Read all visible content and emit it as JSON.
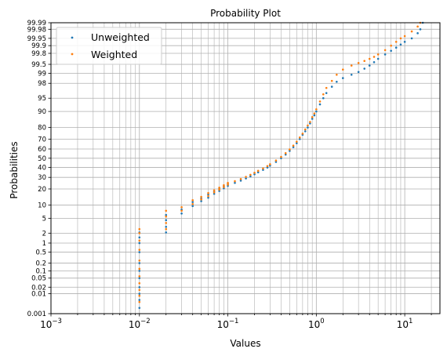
{
  "chart_data": {
    "type": "scatter",
    "title": "Probability Plot",
    "xlabel": "Values",
    "ylabel": "Probabilities",
    "x_scale": "log",
    "y_scale": "probability",
    "xlim": [
      0.001,
      25
    ],
    "ylim": [
      0.001,
      99.99
    ],
    "grid": true,
    "legend_position": "top-left",
    "x_ticks": [
      {
        "value": 0.001,
        "label": "10",
        "exp": "−3"
      },
      {
        "value": 0.01,
        "label": "10",
        "exp": "−2"
      },
      {
        "value": 0.1,
        "label": "10",
        "exp": "−1"
      },
      {
        "value": 1,
        "label": "10",
        "exp": "0"
      },
      {
        "value": 10,
        "label": "10",
        "exp": "1"
      }
    ],
    "y_ticks": [
      {
        "value": 0.001,
        "label": "0.001"
      },
      {
        "value": 0.01,
        "label": "0.01"
      },
      {
        "value": 0.02,
        "label": "0.02"
      },
      {
        "value": 0.05,
        "label": "0.05"
      },
      {
        "value": 0.1,
        "label": "0.1"
      },
      {
        "value": 0.2,
        "label": "0.2"
      },
      {
        "value": 0.5,
        "label": "0.5"
      },
      {
        "value": 1,
        "label": "1"
      },
      {
        "value": 2,
        "label": "2"
      },
      {
        "value": 5,
        "label": "5"
      },
      {
        "value": 10,
        "label": "10"
      },
      {
        "value": 20,
        "label": "20"
      },
      {
        "value": 30,
        "label": "30"
      },
      {
        "value": 40,
        "label": "40"
      },
      {
        "value": 50,
        "label": "50"
      },
      {
        "value": 60,
        "label": "60"
      },
      {
        "value": 70,
        "label": "70"
      },
      {
        "value": 80,
        "label": "80"
      },
      {
        "value": 90,
        "label": "90"
      },
      {
        "value": 95,
        "label": "95"
      },
      {
        "value": 98,
        "label": "98"
      },
      {
        "value": 99,
        "label": "99"
      },
      {
        "value": 99.5,
        "label": "99.5"
      },
      {
        "value": 99.8,
        "label": "99.8"
      },
      {
        "value": 99.9,
        "label": "99.9"
      },
      {
        "value": 99.95,
        "label": "99.95"
      },
      {
        "value": 99.98,
        "label": "99.98"
      },
      {
        "value": 99.99,
        "label": "99.99"
      }
    ],
    "series": [
      {
        "name": "Unweighted",
        "color": "#1f77b4",
        "points": [
          [
            0.01,
            0.002
          ],
          [
            0.01,
            0.005
          ],
          [
            0.01,
            0.01
          ],
          [
            0.01,
            0.02
          ],
          [
            0.01,
            0.05
          ],
          [
            0.01,
            0.1
          ],
          [
            0.01,
            0.2
          ],
          [
            0.01,
            0.5
          ],
          [
            0.01,
            1
          ],
          [
            0.01,
            1.5
          ],
          [
            0.01,
            2.1
          ],
          [
            0.02,
            2.1
          ],
          [
            0.02,
            3
          ],
          [
            0.02,
            4.5
          ],
          [
            0.02,
            6
          ],
          [
            0.03,
            6.5
          ],
          [
            0.03,
            8
          ],
          [
            0.04,
            9.5
          ],
          [
            0.04,
            11.5
          ],
          [
            0.05,
            12
          ],
          [
            0.05,
            13.5
          ],
          [
            0.06,
            14
          ],
          [
            0.06,
            16
          ],
          [
            0.07,
            16.5
          ],
          [
            0.07,
            18
          ],
          [
            0.08,
            18.5
          ],
          [
            0.08,
            20
          ],
          [
            0.09,
            20.5
          ],
          [
            0.09,
            22
          ],
          [
            0.1,
            22.5
          ],
          [
            0.1,
            24
          ],
          [
            0.12,
            25
          ],
          [
            0.14,
            27
          ],
          [
            0.16,
            29
          ],
          [
            0.18,
            31
          ],
          [
            0.2,
            33
          ],
          [
            0.22,
            35
          ],
          [
            0.25,
            37.5
          ],
          [
            0.28,
            40
          ],
          [
            0.3,
            42
          ],
          [
            0.35,
            46
          ],
          [
            0.4,
            50
          ],
          [
            0.45,
            54
          ],
          [
            0.5,
            58
          ],
          [
            0.55,
            62
          ],
          [
            0.6,
            66
          ],
          [
            0.65,
            70
          ],
          [
            0.7,
            74
          ],
          [
            0.75,
            77
          ],
          [
            0.8,
            80
          ],
          [
            0.85,
            83
          ],
          [
            0.9,
            86
          ],
          [
            0.95,
            88
          ],
          [
            1.0,
            90
          ],
          [
            1.1,
            93
          ],
          [
            1.2,
            95
          ],
          [
            1.3,
            96.3
          ],
          [
            1.5,
            97.5
          ],
          [
            1.7,
            98.2
          ],
          [
            2.0,
            98.6
          ],
          [
            2.5,
            98.9
          ],
          [
            3.0,
            99.1
          ],
          [
            3.5,
            99.3
          ],
          [
            4.0,
            99.45
          ],
          [
            4.5,
            99.58
          ],
          [
            5.0,
            99.68
          ],
          [
            6.0,
            99.78
          ],
          [
            7.0,
            99.84
          ],
          [
            8.0,
            99.88
          ],
          [
            9.0,
            99.91
          ],
          [
            10,
            99.93
          ],
          [
            12,
            99.95
          ],
          [
            14,
            99.97
          ],
          [
            15,
            99.98
          ],
          [
            16,
            99.99
          ]
        ]
      },
      {
        "name": "Weighted",
        "color": "#ff7f0e",
        "points": [
          [
            0.01,
            0.004
          ],
          [
            0.01,
            0.008
          ],
          [
            0.01,
            0.015
          ],
          [
            0.01,
            0.03
          ],
          [
            0.01,
            0.06
          ],
          [
            0.01,
            0.12
          ],
          [
            0.01,
            0.25
          ],
          [
            0.01,
            0.6
          ],
          [
            0.01,
            1.2
          ],
          [
            0.01,
            2.0
          ],
          [
            0.01,
            2.6
          ],
          [
            0.02,
            2.6
          ],
          [
            0.02,
            3.8
          ],
          [
            0.02,
            5.5
          ],
          [
            0.02,
            7.5
          ],
          [
            0.03,
            7.5
          ],
          [
            0.03,
            9
          ],
          [
            0.04,
            10.5
          ],
          [
            0.04,
            12.5
          ],
          [
            0.05,
            13
          ],
          [
            0.05,
            14.5
          ],
          [
            0.06,
            15
          ],
          [
            0.06,
            17
          ],
          [
            0.07,
            17.5
          ],
          [
            0.07,
            19
          ],
          [
            0.08,
            19.5
          ],
          [
            0.08,
            21
          ],
          [
            0.09,
            21.5
          ],
          [
            0.09,
            23
          ],
          [
            0.1,
            23.5
          ],
          [
            0.1,
            25
          ],
          [
            0.12,
            26.5
          ],
          [
            0.14,
            28.5
          ],
          [
            0.16,
            30.5
          ],
          [
            0.18,
            32.5
          ],
          [
            0.2,
            34.5
          ],
          [
            0.22,
            36.5
          ],
          [
            0.25,
            39
          ],
          [
            0.28,
            41.5
          ],
          [
            0.3,
            43.5
          ],
          [
            0.35,
            47.5
          ],
          [
            0.4,
            51.5
          ],
          [
            0.45,
            55.5
          ],
          [
            0.5,
            59.5
          ],
          [
            0.55,
            63.5
          ],
          [
            0.6,
            67.5
          ],
          [
            0.65,
            71.5
          ],
          [
            0.7,
            75
          ],
          [
            0.75,
            78.5
          ],
          [
            0.8,
            81.5
          ],
          [
            0.85,
            84
          ],
          [
            0.9,
            87
          ],
          [
            0.95,
            89
          ],
          [
            1.0,
            91
          ],
          [
            1.1,
            94
          ],
          [
            1.2,
            96
          ],
          [
            1.3,
            97.3
          ],
          [
            1.5,
            98.3
          ],
          [
            1.7,
            98.9
          ],
          [
            2.0,
            99.25
          ],
          [
            2.5,
            99.45
          ],
          [
            3.0,
            99.55
          ],
          [
            3.5,
            99.62
          ],
          [
            4.0,
            99.68
          ],
          [
            4.5,
            99.73
          ],
          [
            5.0,
            99.78
          ],
          [
            6.0,
            99.85
          ],
          [
            7.0,
            99.9
          ],
          [
            8.0,
            99.93
          ],
          [
            9.0,
            99.95
          ],
          [
            10,
            99.96
          ],
          [
            12,
            99.975
          ],
          [
            14,
            99.985
          ],
          [
            15,
            99.99
          ]
        ]
      }
    ]
  }
}
